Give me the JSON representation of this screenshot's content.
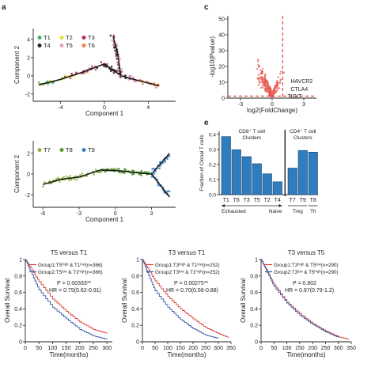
{
  "panel_labels": {
    "a": "a",
    "c": "c",
    "e": "e"
  },
  "colors": {
    "axis": "#222222",
    "trajectory": "#1a1a1a",
    "volcano_point": "#e85a54",
    "volcano_highlight": "#3aa6c8",
    "cutoff_line": "#d83a2e",
    "bar": "#2e7dbf",
    "bar_edge": "#1b3f66",
    "km_group1": "#d9423b",
    "km_group2": "#3a5ba8",
    "traj_colors_top": [
      "#3cb371",
      "#e0e040",
      "#b0306a",
      "#222222",
      "#e8a0c8",
      "#f08040"
    ],
    "traj_colors_mid": [
      "#8bb43a",
      "#5a9c30",
      "#3b82c4"
    ]
  },
  "chart_data": [
    {
      "id": "trajectory-top",
      "type": "scatter",
      "xlabel": "Component 1",
      "ylabel": "Component 2",
      "xticks": [
        -4,
        0,
        4
      ],
      "yticks": [
        -2,
        0,
        2,
        4
      ],
      "xlim": [
        -6.5,
        6.5
      ],
      "ylim": [
        -2.8,
        5.2
      ],
      "legend": [
        "T1",
        "T2",
        "T3",
        "T4",
        "T5",
        "T6"
      ],
      "trajectory": {
        "main": [
          [
            -6,
            -1
          ],
          [
            -4,
            -0.4
          ],
          [
            -2,
            0.4
          ],
          [
            0,
            1.3
          ],
          [
            1.5,
            0
          ],
          [
            3,
            -0.5
          ],
          [
            5,
            -1.1
          ]
        ],
        "branch": [
          [
            1.5,
            0
          ],
          [
            1.2,
            2.5
          ],
          [
            0.8,
            4.3
          ]
        ]
      }
    },
    {
      "id": "trajectory-mid",
      "type": "scatter",
      "xlabel": "Component 1",
      "ylabel": "Component 2",
      "xticks": [
        -6,
        -3,
        0,
        3
      ],
      "yticks": [
        -2,
        0,
        2
      ],
      "xlim": [
        -6.8,
        5
      ],
      "ylim": [
        -3.2,
        3.2
      ],
      "legend": [
        "T7",
        "T8",
        "T9"
      ],
      "trajectory": {
        "main": [
          [
            -6,
            -1
          ],
          [
            -4.5,
            -0.5
          ],
          [
            -3,
            -0.3
          ],
          [
            -1.2,
            0.4
          ],
          [
            0.5,
            0.3
          ],
          [
            2,
            0.1
          ],
          [
            3,
            0
          ]
        ],
        "branch_up": [
          [
            3,
            0
          ],
          [
            4.5,
            2
          ]
        ],
        "branch_down": [
          [
            3,
            0
          ],
          [
            4.5,
            -2.2
          ]
        ]
      }
    },
    {
      "id": "volcano",
      "type": "scatter",
      "xlabel": "log2(FoldChange)",
      "ylabel": "-log10(Pvalue)",
      "xticks": [
        -3,
        0,
        3
      ],
      "yticks": [
        0,
        10,
        20,
        30,
        40,
        50
      ],
      "xlim": [
        -4.2,
        4.2
      ],
      "ylim": [
        0,
        52
      ],
      "cutoff_x": 1,
      "cutoff_y": 1.3,
      "labels": [
        {
          "text": "HAVCR2",
          "x": 1.6,
          "y": 11
        },
        {
          "text": "CTLA4",
          "x": 1.6,
          "y": 6
        },
        {
          "text": "TIGIT",
          "x": 1.3,
          "y": 1.6
        }
      ]
    },
    {
      "id": "clonal-bars",
      "type": "bar",
      "ylabel": "Fraction of Clonal T cells",
      "yticks": [
        0.0,
        0.1,
        0.2,
        0.3,
        0.4
      ],
      "ylim": [
        0,
        0.42
      ],
      "group_titles": [
        {
          "line1": "CD8⁺ T cell",
          "line2": "Clusters"
        },
        {
          "line1": "CD4⁺ T cell",
          "line2": "Clusters"
        }
      ],
      "categories": [
        "T1",
        "T6",
        "T3",
        "T5",
        "T2",
        "T4",
        "T7",
        "T9",
        "T8"
      ],
      "values": [
        0.385,
        0.298,
        0.252,
        0.205,
        0.138,
        0.085,
        0.176,
        0.293,
        0.282
      ],
      "annotations": [
        "Exhausted",
        "Naive",
        "Treg",
        "Th"
      ]
    },
    {
      "id": "km-1",
      "type": "line",
      "title": "T5 versus T1",
      "xlabel": "Time(months)",
      "ylabel": "Overall Survival",
      "xticks": [
        0,
        50,
        100,
        150,
        200,
        250,
        300
      ],
      "yticks": [
        0,
        0.2,
        0.4,
        0.6,
        0.8,
        1
      ],
      "xlim": [
        0,
        320
      ],
      "ylim": [
        0,
        1
      ],
      "legend": [
        "Group1:T5ʰⁱᵍʰ & T1ˡᵒʷ(n=366)",
        "Group2:T5ˡᵒʷ & T1ʰⁱᵍʰ(n=366)"
      ],
      "stat_p": "P = 0.00333**",
      "stat_hr": "HR = 0.75(0.62-0.91)",
      "series": [
        {
          "values": [
            [
              0,
              1
            ],
            [
              20,
              0.9
            ],
            [
              50,
              0.73
            ],
            [
              100,
              0.52
            ],
            [
              150,
              0.37
            ],
            [
              200,
              0.24
            ],
            [
              250,
              0.15
            ],
            [
              300,
              0.1
            ]
          ]
        },
        {
          "values": [
            [
              0,
              1
            ],
            [
              20,
              0.85
            ],
            [
              50,
              0.63
            ],
            [
              100,
              0.42
            ],
            [
              150,
              0.28
            ],
            [
              200,
              0.15
            ],
            [
              250,
              0.07
            ],
            [
              300,
              0.03
            ]
          ]
        }
      ]
    },
    {
      "id": "km-2",
      "type": "line",
      "title": "T3 versus T1",
      "xlabel": "Time(months)",
      "ylabel": "Overall Survival",
      "xticks": [
        0,
        50,
        100,
        150,
        200,
        250,
        300,
        350
      ],
      "yticks": [
        0,
        0.2,
        0.4,
        0.6,
        0.8,
        1
      ],
      "xlim": [
        0,
        350
      ],
      "ylim": [
        0,
        1
      ],
      "legend": [
        "Group1:T3ʰⁱᵍʰ & T1ˡᵒʷ(n=252)",
        "Group2:T3ˡᵒʷ & T1ʰⁱᵍʰ(n=252)"
      ],
      "stat_p": "P = 0.00275**",
      "stat_hr": "HR = 0.70(0.56-0.88)",
      "series": [
        {
          "values": [
            [
              0,
              1
            ],
            [
              20,
              0.9
            ],
            [
              50,
              0.74
            ],
            [
              100,
              0.55
            ],
            [
              150,
              0.4
            ],
            [
              200,
              0.28
            ],
            [
              250,
              0.17
            ],
            [
              300,
              0.1
            ],
            [
              340,
              0.05
            ]
          ]
        },
        {
          "values": [
            [
              0,
              1
            ],
            [
              20,
              0.84
            ],
            [
              50,
              0.62
            ],
            [
              100,
              0.42
            ],
            [
              150,
              0.27
            ],
            [
              200,
              0.16
            ],
            [
              250,
              0.08
            ],
            [
              300,
              0.04
            ]
          ]
        }
      ]
    },
    {
      "id": "km-3",
      "type": "line",
      "title": "T3 versus T5",
      "xlabel": "Time(months)",
      "ylabel": "Overall Survival",
      "xticks": [
        0,
        50,
        100,
        150,
        200,
        250,
        300,
        350
      ],
      "yticks": [
        0,
        0.2,
        0.4,
        0.6,
        0.8,
        1
      ],
      "xlim": [
        0,
        350
      ],
      "ylim": [
        0,
        1
      ],
      "legend": [
        "Group1:T3ʰⁱᵍʰ & T5ˡᵒʷ(n=290)",
        "Group2:T3ˡᵒʷ & T5ʰⁱᵍʰ(n=290)"
      ],
      "stat_p": "P = 0.802",
      "stat_hr": "HR = 0.97(0.79-1.2)",
      "series": [
        {
          "values": [
            [
              0,
              1
            ],
            [
              20,
              0.88
            ],
            [
              50,
              0.69
            ],
            [
              100,
              0.48
            ],
            [
              150,
              0.34
            ],
            [
              200,
              0.22
            ],
            [
              250,
              0.13
            ],
            [
              300,
              0.06
            ],
            [
              340,
              0.03
            ]
          ]
        },
        {
          "values": [
            [
              0,
              1
            ],
            [
              20,
              0.87
            ],
            [
              50,
              0.67
            ],
            [
              100,
              0.47
            ],
            [
              150,
              0.32
            ],
            [
              200,
              0.21
            ],
            [
              250,
              0.12
            ],
            [
              300,
              0.05
            ]
          ]
        }
      ]
    }
  ]
}
